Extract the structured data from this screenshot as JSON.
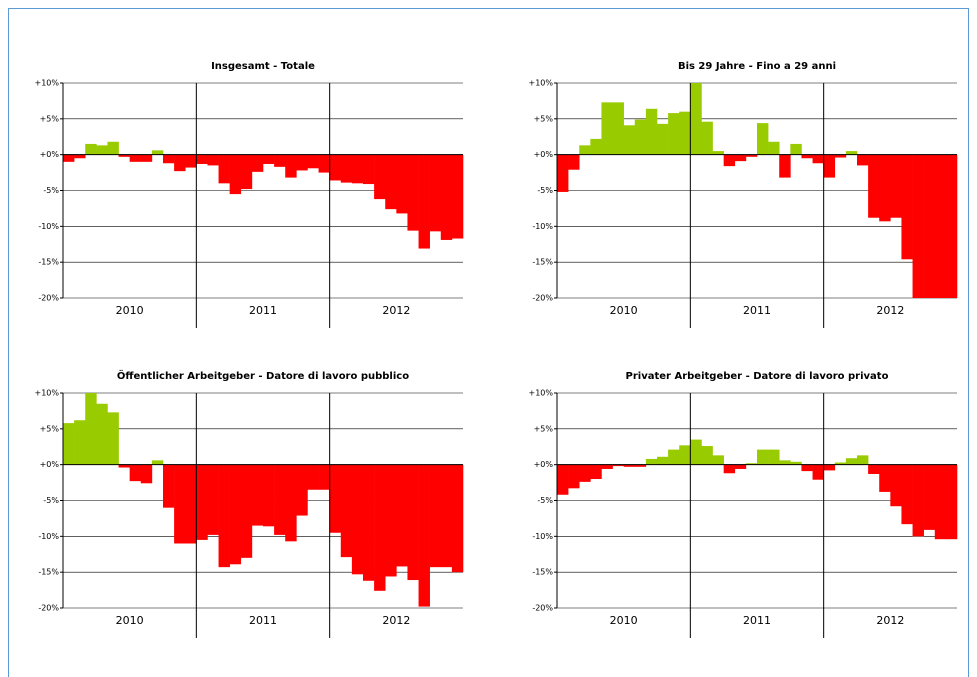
{
  "chart_data": [
    {
      "type": "bar",
      "title": "Insgesamt - Totale",
      "year_labels": [
        "2010",
        "2011",
        "2012"
      ],
      "values": [
        -1,
        -0.5,
        1.5,
        1.3,
        1.8,
        -0.3,
        -1,
        -1,
        0.6,
        -1.2,
        -2.3,
        -1.8,
        -1.3,
        -1.5,
        -4,
        -5.5,
        -4.8,
        -2.4,
        -1.3,
        -1.7,
        -3.2,
        -2.2,
        -1.9,
        -2.5,
        -3.6,
        -3.9,
        -4,
        -4.1,
        -6.2,
        -7.6,
        -8.2,
        -10.6,
        -13.1,
        -10.7,
        -11.9,
        -11.7
      ],
      "positive_color": "#99cc00",
      "negative_color": "#ff0000",
      "ylim": [
        -20,
        10
      ],
      "yticks": [
        {
          "value": -20,
          "label": "-20%"
        },
        {
          "value": -15,
          "label": "-15%"
        },
        {
          "value": -10,
          "label": "-10%"
        },
        {
          "value": -5,
          "label": "-5%"
        },
        {
          "value": 0,
          "label": "+0%"
        },
        {
          "value": 5,
          "label": "+5%"
        },
        {
          "value": 10,
          "label": "+10%"
        }
      ],
      "grid": true
    },
    {
      "type": "bar",
      "title": "Bis 29 Jahre - Fino a 29 anni",
      "year_labels": [
        "2010",
        "2011",
        "2012"
      ],
      "values": [
        -5.2,
        -2.1,
        1.3,
        2.2,
        7.3,
        7.3,
        4.1,
        4.9,
        6.4,
        4.3,
        5.8,
        6,
        10,
        4.6,
        0.5,
        -1.6,
        -0.9,
        -0.3,
        4.4,
        1.8,
        -3.2,
        1.5,
        -0.5,
        -1.2,
        -3.2,
        -0.4,
        0.5,
        -1.5,
        -8.8,
        -9.3,
        -8.8,
        -14.6,
        -20,
        -20,
        -20,
        -20
      ],
      "positive_color": "#99cc00",
      "negative_color": "#ff0000",
      "ylim": [
        -20,
        10
      ],
      "yticks": [
        {
          "value": -20,
          "label": "-20%"
        },
        {
          "value": -15,
          "label": "-15%"
        },
        {
          "value": -10,
          "label": "-10%"
        },
        {
          "value": -5,
          "label": "-5%"
        },
        {
          "value": 0,
          "label": "+0%"
        },
        {
          "value": 5,
          "label": "+5%"
        },
        {
          "value": 10,
          "label": "+10%"
        }
      ],
      "grid": true
    },
    {
      "type": "bar",
      "title": "Öffentlicher Arbeitgeber - Datore di lavoro pubblico",
      "year_labels": [
        "2010",
        "2011",
        "2012"
      ],
      "values": [
        5.8,
        6.2,
        10,
        8.5,
        7.3,
        -0.4,
        -2.3,
        -2.6,
        0.6,
        -6,
        -11,
        -11,
        -10.5,
        -9.8,
        -14.3,
        -13.9,
        -13,
        -8.5,
        -8.6,
        -9.8,
        -10.7,
        -7.1,
        -3.5,
        -3.5,
        -9.5,
        -12.9,
        -15.3,
        -16.2,
        -17.6,
        -15.6,
        -14.2,
        -16.1,
        -19.8,
        -14.3,
        -14.3,
        -15
      ],
      "positive_color": "#99cc00",
      "negative_color": "#ff0000",
      "ylim": [
        -20,
        10
      ],
      "yticks": [
        {
          "value": -20,
          "label": "-20%"
        },
        {
          "value": -15,
          "label": "-15%"
        },
        {
          "value": -10,
          "label": "-10%"
        },
        {
          "value": -5,
          "label": "-5%"
        },
        {
          "value": 0,
          "label": "+0%"
        },
        {
          "value": 5,
          "label": "+5%"
        },
        {
          "value": 10,
          "label": "+10%"
        }
      ],
      "grid": true
    },
    {
      "type": "bar",
      "title": "Privater Arbeitgeber - Datore di lavoro privato",
      "year_labels": [
        "2010",
        "2011",
        "2012"
      ],
      "values": [
        -4.2,
        -3.3,
        -2.4,
        -2,
        -0.6,
        -0.2,
        -0.3,
        -0.3,
        0.8,
        1.1,
        2.1,
        2.7,
        3.5,
        2.6,
        1.3,
        -1.2,
        -0.6,
        0.2,
        2.1,
        2.1,
        0.6,
        0.4,
        -0.9,
        -2.1,
        -0.8,
        0.3,
        0.9,
        1.3,
        -1.3,
        -3.8,
        -5.8,
        -8.3,
        -10,
        -9.1,
        -10.4,
        -10.4
      ],
      "positive_color": "#99cc00",
      "negative_color": "#ff0000",
      "ylim": [
        -20,
        10
      ],
      "yticks": [
        {
          "value": -20,
          "label": "-20%"
        },
        {
          "value": -15,
          "label": "-15%"
        },
        {
          "value": -10,
          "label": "-10%"
        },
        {
          "value": -5,
          "label": "-5%"
        },
        {
          "value": 0,
          "label": "+0%"
        },
        {
          "value": 5,
          "label": "+5%"
        },
        {
          "value": 10,
          "label": "+10%"
        }
      ],
      "grid": true
    }
  ]
}
